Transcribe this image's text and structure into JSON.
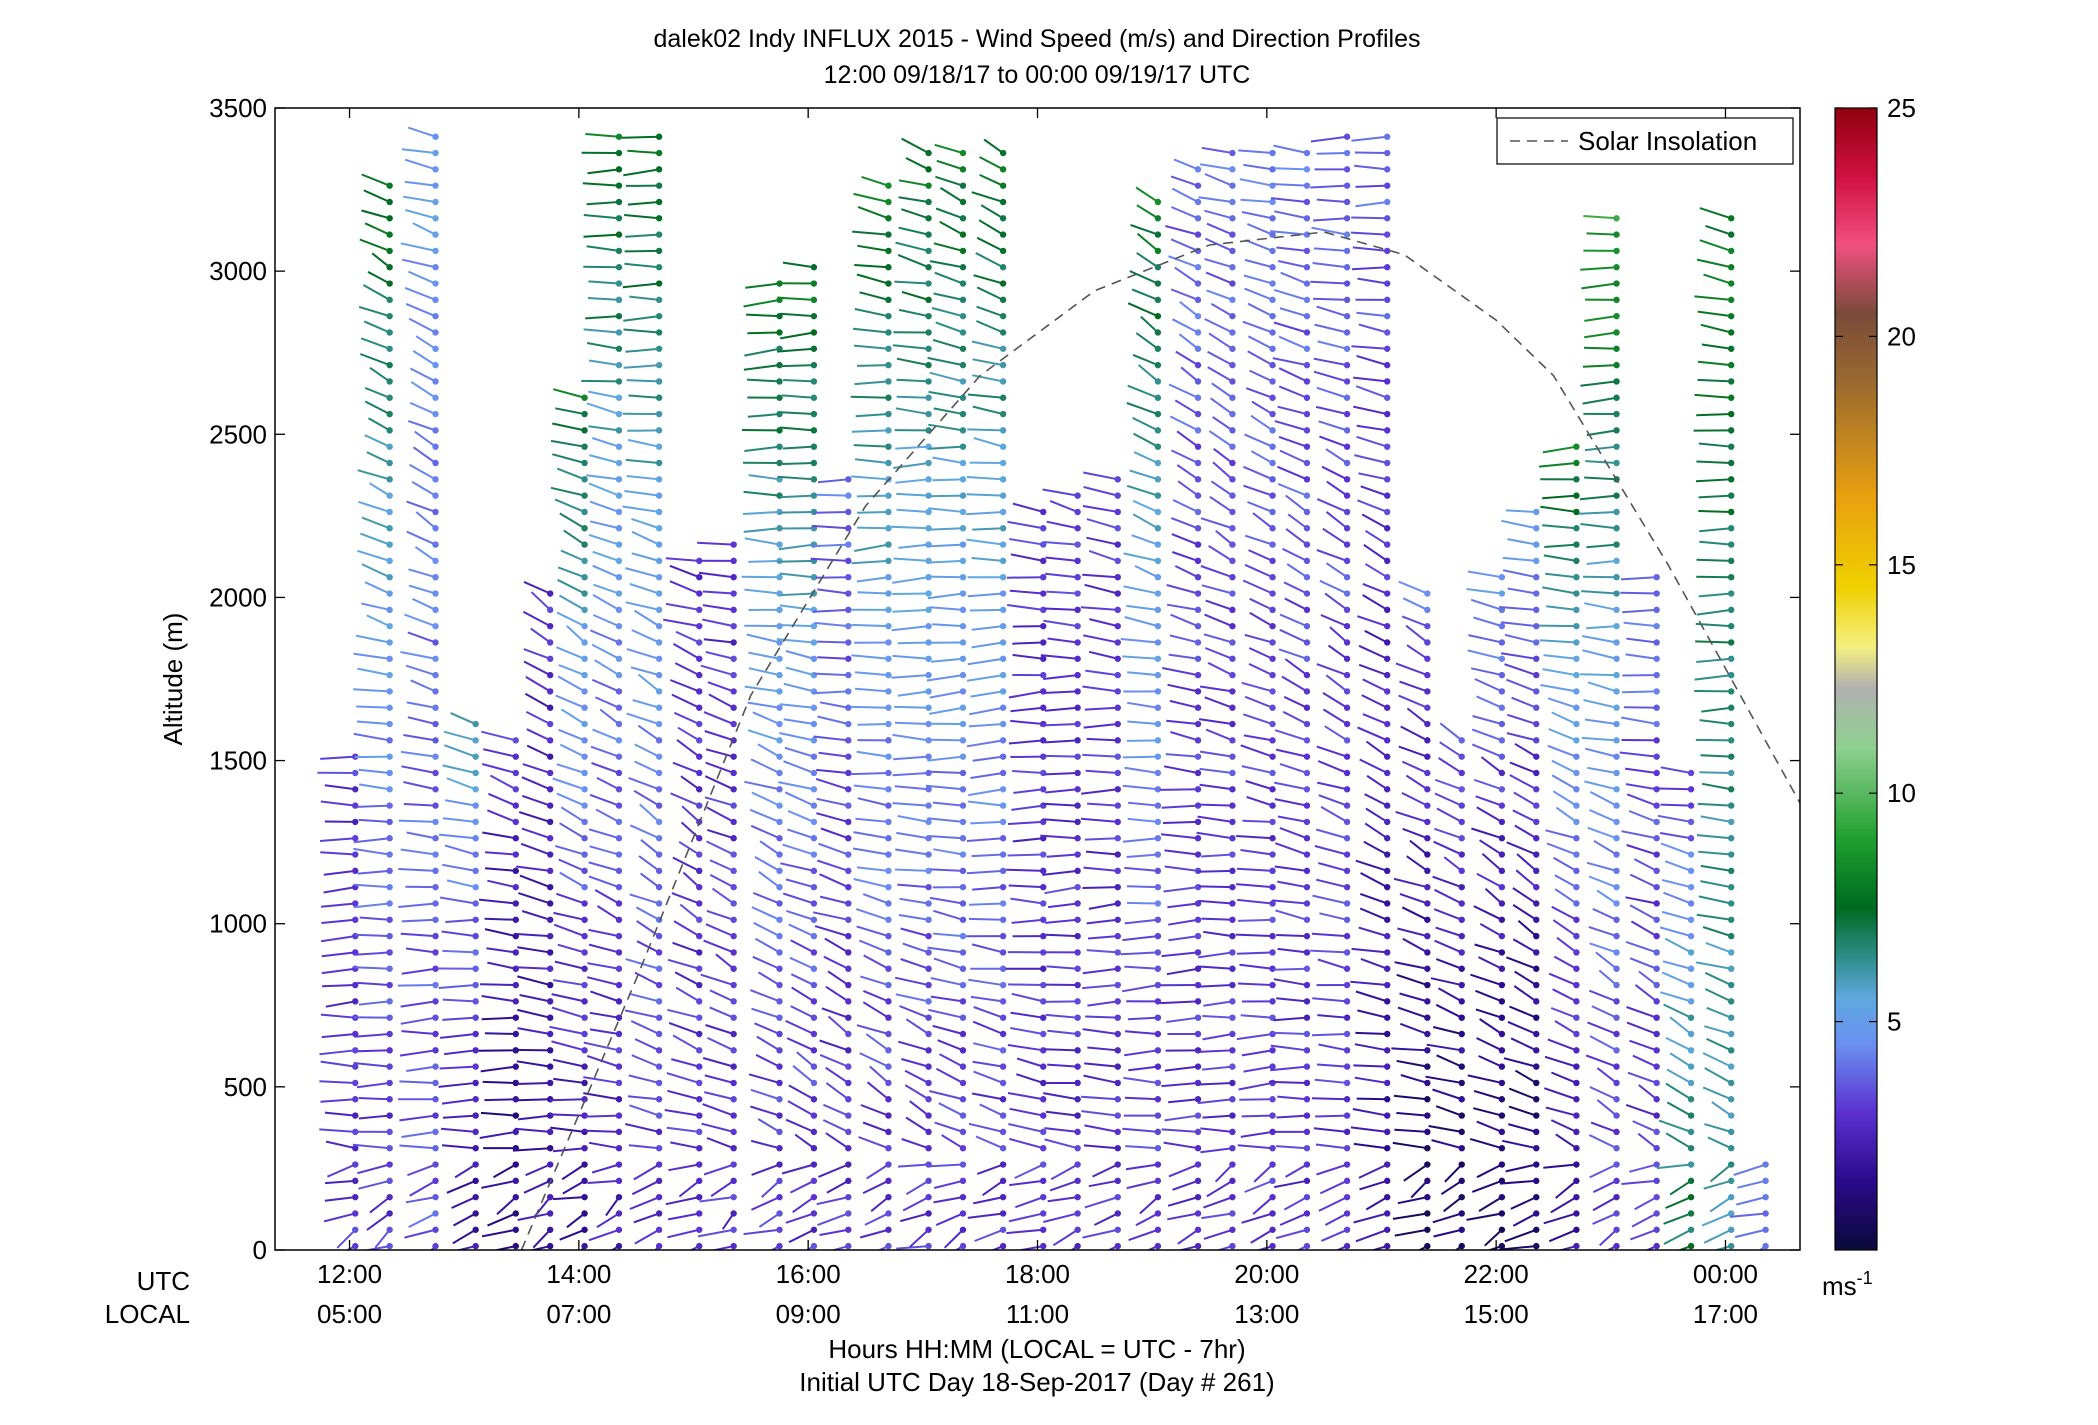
{
  "chart_data": {
    "type": "scatter",
    "subtype": "wind-barb-profile",
    "title": "dalek02 Indy INFLUX 2015 - Wind Speed (m/s) and Direction Profiles",
    "subtitle": "12:00 09/18/17 to 00:00 09/19/17  UTC",
    "xlabel": "Hours HH:MM  (LOCAL = UTC - 7hr)",
    "xlabel2": "Initial UTC Day 18-Sep-2017 (Day # 261)",
    "ylabel": "Altitude (m)",
    "x_row_labels": [
      "UTC",
      "LOCAL"
    ],
    "x_ticks_utc": [
      "12:00",
      "14:00",
      "16:00",
      "18:00",
      "20:00",
      "22:00",
      "00:00"
    ],
    "x_ticks_local": [
      "05:00",
      "07:00",
      "09:00",
      "11:00",
      "13:00",
      "15:00",
      "17:00"
    ],
    "x_tick_hours": [
      12,
      14,
      16,
      18,
      20,
      22,
      24
    ],
    "xlim": [
      11.35,
      24.65
    ],
    "ylim": [
      0,
      3500
    ],
    "y_ticks": [
      0,
      500,
      1000,
      1500,
      2000,
      2500,
      3000,
      3500
    ],
    "y_tick_labels": [
      "0",
      "500",
      "1000",
      "1500",
      "2000",
      "2500",
      "3000",
      "3500"
    ],
    "grid": false,
    "legend": {
      "position": "top-right",
      "entries": [
        "Solar Insolation"
      ]
    },
    "colorbar": {
      "min": 0,
      "max": 25,
      "ticks": [
        5,
        10,
        15,
        20,
        25
      ],
      "tick_labels": [
        "5",
        "10",
        "15",
        "20",
        "25"
      ],
      "unit_label": "ms",
      "unit_exponent": "-1",
      "stops": [
        {
          "v": 0,
          "c": "#0a0a3a"
        },
        {
          "v": 1.5,
          "c": "#2a0a8a"
        },
        {
          "v": 3,
          "c": "#5a30d0"
        },
        {
          "v": 4.5,
          "c": "#6a90f0"
        },
        {
          "v": 5.5,
          "c": "#60a8e0"
        },
        {
          "v": 6.5,
          "c": "#2a8a80"
        },
        {
          "v": 7.5,
          "c": "#006a20"
        },
        {
          "v": 9,
          "c": "#20a030"
        },
        {
          "v": 11,
          "c": "#90d090"
        },
        {
          "v": 12.3,
          "c": "#b0b0b0"
        },
        {
          "v": 13.2,
          "c": "#f4f080"
        },
        {
          "v": 14.5,
          "c": "#f0d000"
        },
        {
          "v": 16.5,
          "c": "#e8a010"
        },
        {
          "v": 19,
          "c": "#9a6a30"
        },
        {
          "v": 20.5,
          "c": "#7a4a3a"
        },
        {
          "v": 22,
          "c": "#f05080"
        },
        {
          "v": 23.5,
          "c": "#d01040"
        },
        {
          "v": 25,
          "c": "#900010"
        }
      ]
    },
    "solar_insolation": {
      "x": [
        13.5,
        14.5,
        15.5,
        16.5,
        17.5,
        18.5,
        19.5,
        20.5,
        21.2,
        22.0,
        22.5,
        23.5,
        24.65
      ],
      "y": [
        0,
        830,
        1700,
        2280,
        2680,
        2940,
        3080,
        3120,
        3050,
        2850,
        2680,
        2100,
        1370
      ]
    },
    "profiles": [
      {
        "t": 12.05,
        "top": 1520,
        "bottom": 0,
        "base_speed": 3,
        "upper_speed": 3
      },
      {
        "t": 12.35,
        "top": 3300,
        "bottom": 0,
        "base_speed": 3,
        "upper_speed": 8
      },
      {
        "t": 12.75,
        "top": 3450,
        "bottom": 0,
        "base_speed": 3.5,
        "upper_speed": 5
      },
      {
        "t": 13.1,
        "top": 1650,
        "bottom": 0,
        "base_speed": 2,
        "upper_speed": 6
      },
      {
        "t": 13.45,
        "top": 1600,
        "bottom": 0,
        "base_speed": 1.5,
        "upper_speed": 3
      },
      {
        "t": 13.75,
        "top": 2050,
        "bottom": 0,
        "base_speed": 2,
        "upper_speed": 3
      },
      {
        "t": 14.05,
        "top": 2650,
        "bottom": 0,
        "base_speed": 2,
        "upper_speed": 8
      },
      {
        "t": 14.35,
        "top": 3450,
        "bottom": 0,
        "base_speed": 2.5,
        "upper_speed": 8
      },
      {
        "t": 14.7,
        "top": 3450,
        "bottom": 0,
        "base_speed": 3,
        "upper_speed": 8
      },
      {
        "t": 15.05,
        "top": 2150,
        "bottom": 0,
        "base_speed": 3,
        "upper_speed": 3
      },
      {
        "t": 15.35,
        "top": 2200,
        "bottom": 0,
        "base_speed": 3,
        "upper_speed": 3
      },
      {
        "t": 15.75,
        "top": 3000,
        "bottom": 0,
        "base_speed": 3,
        "upper_speed": 8
      },
      {
        "t": 16.05,
        "top": 3050,
        "bottom": 0,
        "base_speed": 3,
        "upper_speed": 8
      },
      {
        "t": 16.35,
        "top": 2400,
        "bottom": 0,
        "base_speed": 3,
        "upper_speed": 4
      },
      {
        "t": 16.7,
        "top": 3300,
        "bottom": 0,
        "base_speed": 3,
        "upper_speed": 8
      },
      {
        "t": 17.05,
        "top": 3400,
        "bottom": 0,
        "base_speed": 3,
        "upper_speed": 8
      },
      {
        "t": 17.35,
        "top": 3400,
        "bottom": 0,
        "base_speed": 3,
        "upper_speed": 8
      },
      {
        "t": 17.7,
        "top": 3400,
        "bottom": 0,
        "base_speed": 3,
        "upper_speed": 8
      },
      {
        "t": 18.05,
        "top": 2300,
        "bottom": 0,
        "base_speed": 3,
        "upper_speed": 3
      },
      {
        "t": 18.35,
        "top": 2350,
        "bottom": 0,
        "base_speed": 3,
        "upper_speed": 3
      },
      {
        "t": 18.7,
        "top": 2400,
        "bottom": 0,
        "base_speed": 3,
        "upper_speed": 3
      },
      {
        "t": 19.05,
        "top": 3250,
        "bottom": 0,
        "base_speed": 3,
        "upper_speed": 8
      },
      {
        "t": 19.4,
        "top": 3350,
        "bottom": 0,
        "base_speed": 3,
        "upper_speed": 4
      },
      {
        "t": 19.7,
        "top": 3400,
        "bottom": 0,
        "base_speed": 3,
        "upper_speed": 4
      },
      {
        "t": 20.05,
        "top": 3400,
        "bottom": 0,
        "base_speed": 3,
        "upper_speed": 4
      },
      {
        "t": 20.35,
        "top": 3400,
        "bottom": 0,
        "base_speed": 3,
        "upper_speed": 4
      },
      {
        "t": 20.7,
        "top": 3450,
        "bottom": 0,
        "base_speed": 3,
        "upper_speed": 4
      },
      {
        "t": 21.05,
        "top": 3450,
        "bottom": 0,
        "base_speed": 2,
        "upper_speed": 4
      },
      {
        "t": 21.4,
        "top": 2050,
        "bottom": 0,
        "base_speed": 1,
        "upper_speed": 4
      },
      {
        "t": 21.7,
        "top": 1600,
        "bottom": 0,
        "base_speed": 1,
        "upper_speed": 4
      },
      {
        "t": 22.05,
        "top": 2100,
        "bottom": 0,
        "base_speed": 1,
        "upper_speed": 5
      },
      {
        "t": 22.35,
        "top": 2300,
        "bottom": 0,
        "base_speed": 1,
        "upper_speed": 5
      },
      {
        "t": 22.7,
        "top": 2500,
        "bottom": 0,
        "base_speed": 2,
        "upper_speed": 8
      },
      {
        "t": 23.05,
        "top": 3200,
        "bottom": 0,
        "base_speed": 3,
        "upper_speed": 9
      },
      {
        "t": 23.4,
        "top": 2100,
        "bottom": 0,
        "base_speed": 3,
        "upper_speed": 4
      },
      {
        "t": 23.7,
        "top": 1500,
        "bottom": 0,
        "base_speed": 7,
        "upper_speed": 3
      },
      {
        "t": 24.05,
        "top": 3200,
        "bottom": 0,
        "base_speed": 6,
        "upper_speed": 8
      },
      {
        "t": 24.35,
        "top": 300,
        "bottom": 0,
        "base_speed": 4,
        "upper_speed": 4
      }
    ]
  }
}
